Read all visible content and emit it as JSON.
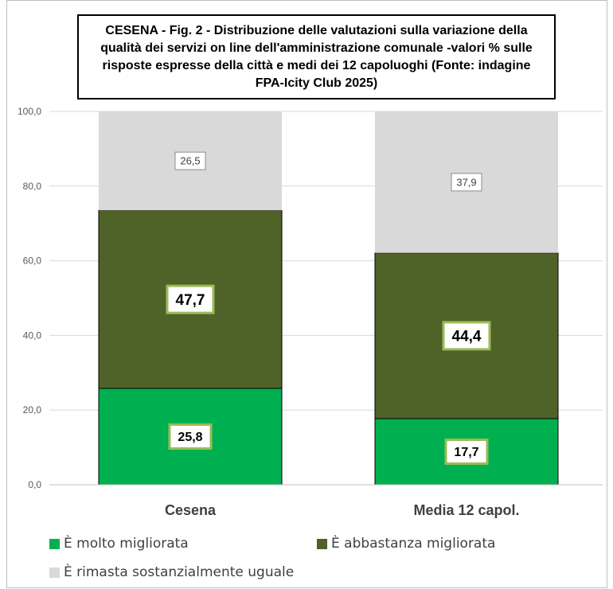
{
  "chart_data": {
    "type": "bar",
    "stacked": true,
    "title": "CESENA - Fig. 2 - Distribuzione delle valutazioni sulla variazione della qualità dei servizi on line dell'amministrazione comunale -valori % sulle risposte espresse della città e medi dei 12 capoluoghi  (Fonte: indagine FPA-Icity Club 2025)",
    "categories": [
      "Cesena",
      "Media 12 capol."
    ],
    "series": [
      {
        "name": "È molto migliorata",
        "values": [
          25.8,
          17.7
        ],
        "labels": [
          "25,8",
          "17,7"
        ],
        "color": "#00b050"
      },
      {
        "name": "È abbastanza migliorata",
        "values": [
          47.7,
          44.4
        ],
        "labels": [
          "47,7",
          "44,4"
        ],
        "color": "#4f6228"
      },
      {
        "name": "È rimasta sostanzialmente uguale",
        "values": [
          26.5,
          37.9
        ],
        "labels": [
          "26,5",
          "37,9"
        ],
        "color": "#d9d9d9"
      }
    ],
    "ylim": [
      0,
      100
    ],
    "yticks": [
      "0,0",
      "20,0",
      "40,0",
      "60,0",
      "80,0",
      "100,0"
    ],
    "grid": true,
    "legend": "bottom"
  }
}
